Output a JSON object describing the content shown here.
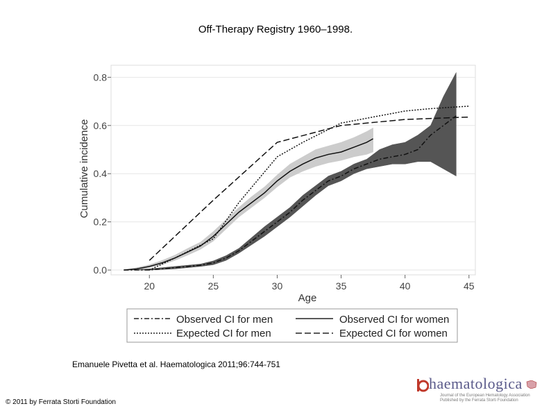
{
  "slide": {
    "title": "Off-Therapy Registry 1960–1998.",
    "citation": "Emanuele Pivetta et al. Haematologica 2011;96:744-751",
    "copyright": "© 2011 by Ferrata Storti Foundation"
  },
  "logo": {
    "name": "haematologica",
    "tagline": "Journal of the European Hematology Association",
    "publisher": "Published by the Ferrata Storti Foundation",
    "colors": {
      "text": "#5a5a8a",
      "accent": "#c0392b"
    }
  },
  "chart_data": {
    "type": "line",
    "title": "",
    "xlabel": "Age",
    "ylabel": "Cumulative incidence",
    "xlim": [
      17,
      45.5
    ],
    "ylim": [
      -0.02,
      0.85
    ],
    "xticks": [
      20,
      25,
      30,
      35,
      40,
      45
    ],
    "yticks": [
      0.0,
      0.2,
      0.4,
      0.6,
      0.8
    ],
    "ytick_labels": [
      "0.0",
      "0.2",
      "0.4",
      "0.6",
      "0.8"
    ],
    "grid": true,
    "legend_position": "bottom",
    "series": [
      {
        "name": "Observed CI for men",
        "style": "dashdot",
        "x": [
          18,
          20,
          22,
          24,
          25,
          26,
          27,
          28,
          29,
          30,
          31,
          32,
          33,
          34,
          35,
          36,
          37,
          38,
          39,
          40,
          41,
          42,
          43,
          44
        ],
        "y": [
          0.0,
          0.0,
          0.01,
          0.02,
          0.03,
          0.05,
          0.08,
          0.12,
          0.16,
          0.2,
          0.24,
          0.29,
          0.33,
          0.37,
          0.39,
          0.42,
          0.44,
          0.46,
          0.47,
          0.48,
          0.5,
          0.56,
          0.6,
          0.64
        ],
        "ci_lower": [
          0.0,
          0.0,
          0.005,
          0.015,
          0.022,
          0.04,
          0.07,
          0.105,
          0.14,
          0.18,
          0.22,
          0.265,
          0.31,
          0.35,
          0.37,
          0.4,
          0.42,
          0.43,
          0.44,
          0.44,
          0.45,
          0.45,
          0.42,
          0.39
        ],
        "ci_upper": [
          0.0,
          0.005,
          0.015,
          0.025,
          0.038,
          0.06,
          0.09,
          0.135,
          0.18,
          0.22,
          0.26,
          0.31,
          0.35,
          0.39,
          0.41,
          0.44,
          0.46,
          0.5,
          0.52,
          0.53,
          0.56,
          0.6,
          0.72,
          0.82
        ],
        "band_color": "#555555"
      },
      {
        "name": "Observed CI for women",
        "style": "solid",
        "x": [
          18,
          19,
          20,
          21,
          22,
          23,
          24,
          25,
          26,
          27,
          28,
          29,
          30,
          31,
          32,
          33,
          34,
          35,
          36,
          37,
          37.5
        ],
        "y": [
          0.0,
          0.005,
          0.015,
          0.03,
          0.05,
          0.075,
          0.1,
          0.14,
          0.19,
          0.24,
          0.28,
          0.32,
          0.37,
          0.41,
          0.44,
          0.465,
          0.48,
          0.49,
          0.51,
          0.53,
          0.545
        ],
        "ci_lower": [
          0.0,
          0.002,
          0.01,
          0.022,
          0.04,
          0.062,
          0.086,
          0.12,
          0.17,
          0.22,
          0.26,
          0.3,
          0.345,
          0.385,
          0.41,
          0.43,
          0.445,
          0.455,
          0.47,
          0.48,
          0.49
        ],
        "ci_upper": [
          0.0,
          0.01,
          0.022,
          0.04,
          0.062,
          0.09,
          0.116,
          0.16,
          0.21,
          0.26,
          0.305,
          0.345,
          0.395,
          0.44,
          0.47,
          0.5,
          0.515,
          0.53,
          0.55,
          0.575,
          0.59
        ],
        "band_color": "#cccccc"
      },
      {
        "name": "Expected CI for men",
        "style": "dotted",
        "x": [
          20,
          22,
          25,
          27,
          30,
          32,
          35,
          38,
          40,
          42,
          45
        ],
        "y": [
          0.0,
          0.05,
          0.13,
          0.28,
          0.47,
          0.53,
          0.61,
          0.64,
          0.66,
          0.67,
          0.68
        ]
      },
      {
        "name": "Expected CI for women",
        "style": "dashed",
        "x": [
          20,
          25,
          30,
          35,
          40,
          45
        ],
        "y": [
          0.04,
          0.29,
          0.53,
          0.6,
          0.625,
          0.635
        ]
      }
    ]
  }
}
